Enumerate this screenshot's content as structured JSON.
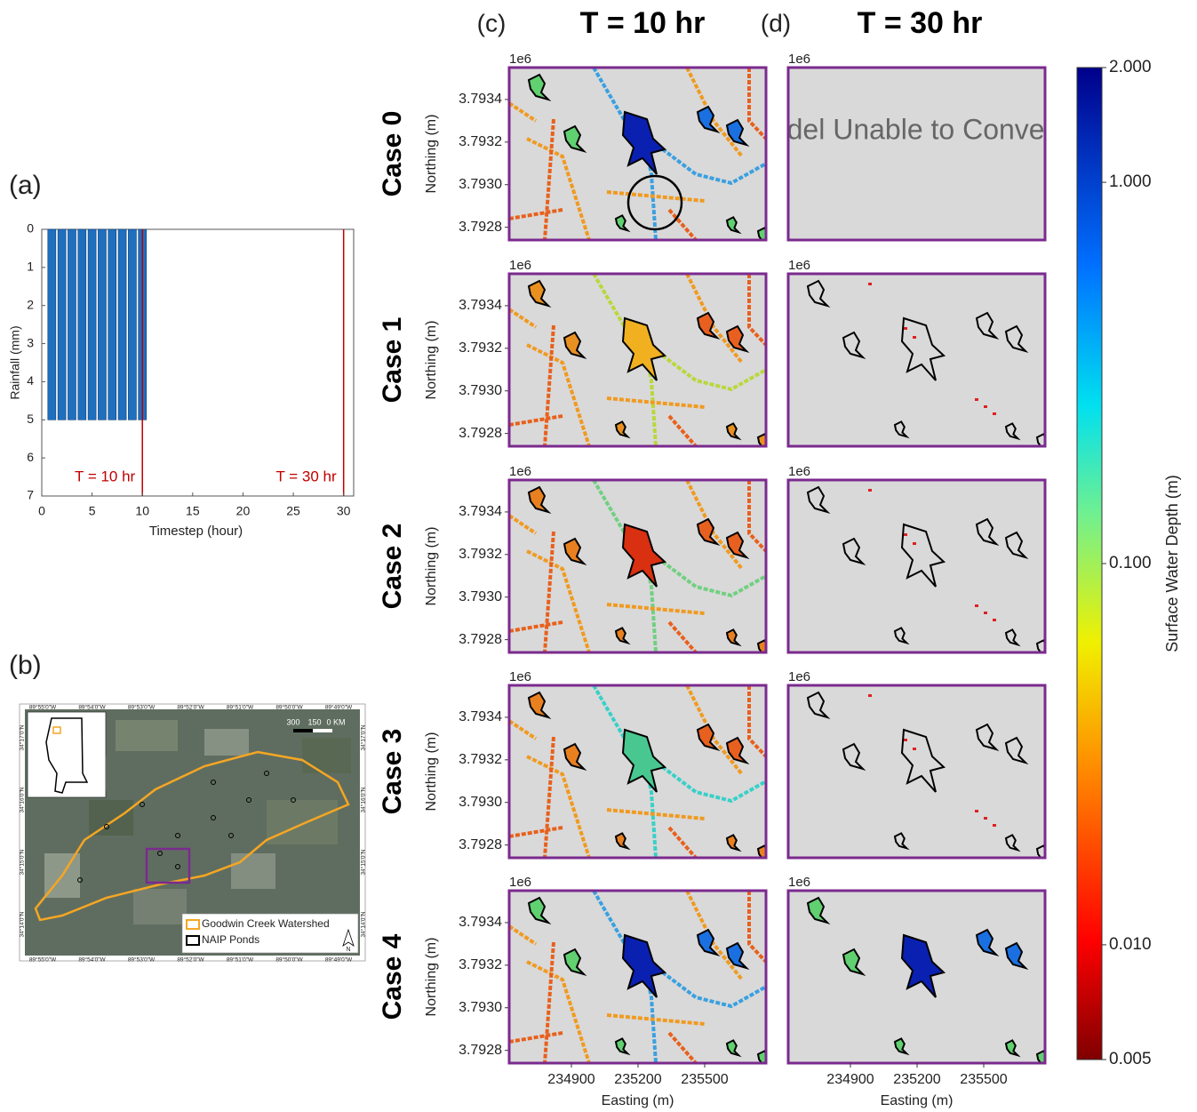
{
  "chart_data": [
    {
      "type": "bar",
      "panel_label": "(a)",
      "xlabel": "Timestep (hour)",
      "ylabel": "Rainfall (mm)",
      "x": [
        1,
        2,
        3,
        4,
        5,
        6,
        7,
        8,
        9,
        10
      ],
      "values": [
        5,
        5,
        5,
        5,
        5,
        5,
        5,
        5,
        5,
        5
      ],
      "color": "#1f6fbf",
      "xlim": [
        0,
        31
      ],
      "ylim": [
        0,
        7
      ],
      "y_inverted": true,
      "xticks": [
        0,
        5,
        10,
        15,
        20,
        25,
        30
      ],
      "yticks": [
        0,
        1,
        2,
        3,
        4,
        5,
        6,
        7
      ],
      "markers": [
        {
          "x": 10,
          "label": "T = 10 hr"
        },
        {
          "x": 30,
          "label": "T = 30 hr"
        }
      ],
      "marker_color": "#c00000"
    },
    {
      "type": "map",
      "panel_label": "(b)",
      "legend": [
        {
          "name": "Goodwin Creek Watershed",
          "color": "#f5a623"
        },
        {
          "name": "NAIP Ponds",
          "color": "#000000"
        }
      ],
      "scale_labels": [
        "300",
        "150",
        "0 KM"
      ],
      "north_label": "N",
      "lon_labels": [
        "89°55'0\"W",
        "89°54'0\"W",
        "89°53'0\"W",
        "89°52'0\"W",
        "89°51'0\"W",
        "89°50'0\"W",
        "89°49'0\"W"
      ],
      "lat_labels": [
        "34°17'0\"N",
        "34°16'0\"N",
        "34°15'0\"N",
        "34°14'0\"N"
      ]
    },
    {
      "type": "raster-grid",
      "columns": [
        {
          "label": "(c)",
          "title": "T = 10 hr"
        },
        {
          "label": "(d)",
          "title": "T = 30 hr"
        }
      ],
      "rows": [
        "Case 0",
        "Case 1",
        "Case 2",
        "Case 3",
        "Case 4"
      ],
      "ylabel": "Northing (m)",
      "xlabel": "Easting (m)",
      "offset_label": "1e6",
      "xlim": [
        234620,
        235776
      ],
      "ylim": [
        3.79274,
        3.79355
      ],
      "xticks": [
        234900,
        235200,
        235500
      ],
      "yticks": [
        3.7928,
        {
          "value": 3.793,
          "label": "3.7930"
        },
        3.7932,
        3.7934
      ],
      "note": "Model Unable to Converge",
      "border_color": "#7b2a8e",
      "colorbar": {
        "label": "Surface Water Depth (m)",
        "scale": "log",
        "lim": [
          0.005,
          2
        ],
        "ticks": [
          0.005,
          {
            "value": 0.01,
            "label": "0.010"
          },
          {
            "value": 0.1,
            "label": "0.100"
          },
          {
            "value": 1,
            "label": "1.000"
          },
          {
            "value": 2,
            "label": "2.000"
          }
        ]
      }
    }
  ]
}
